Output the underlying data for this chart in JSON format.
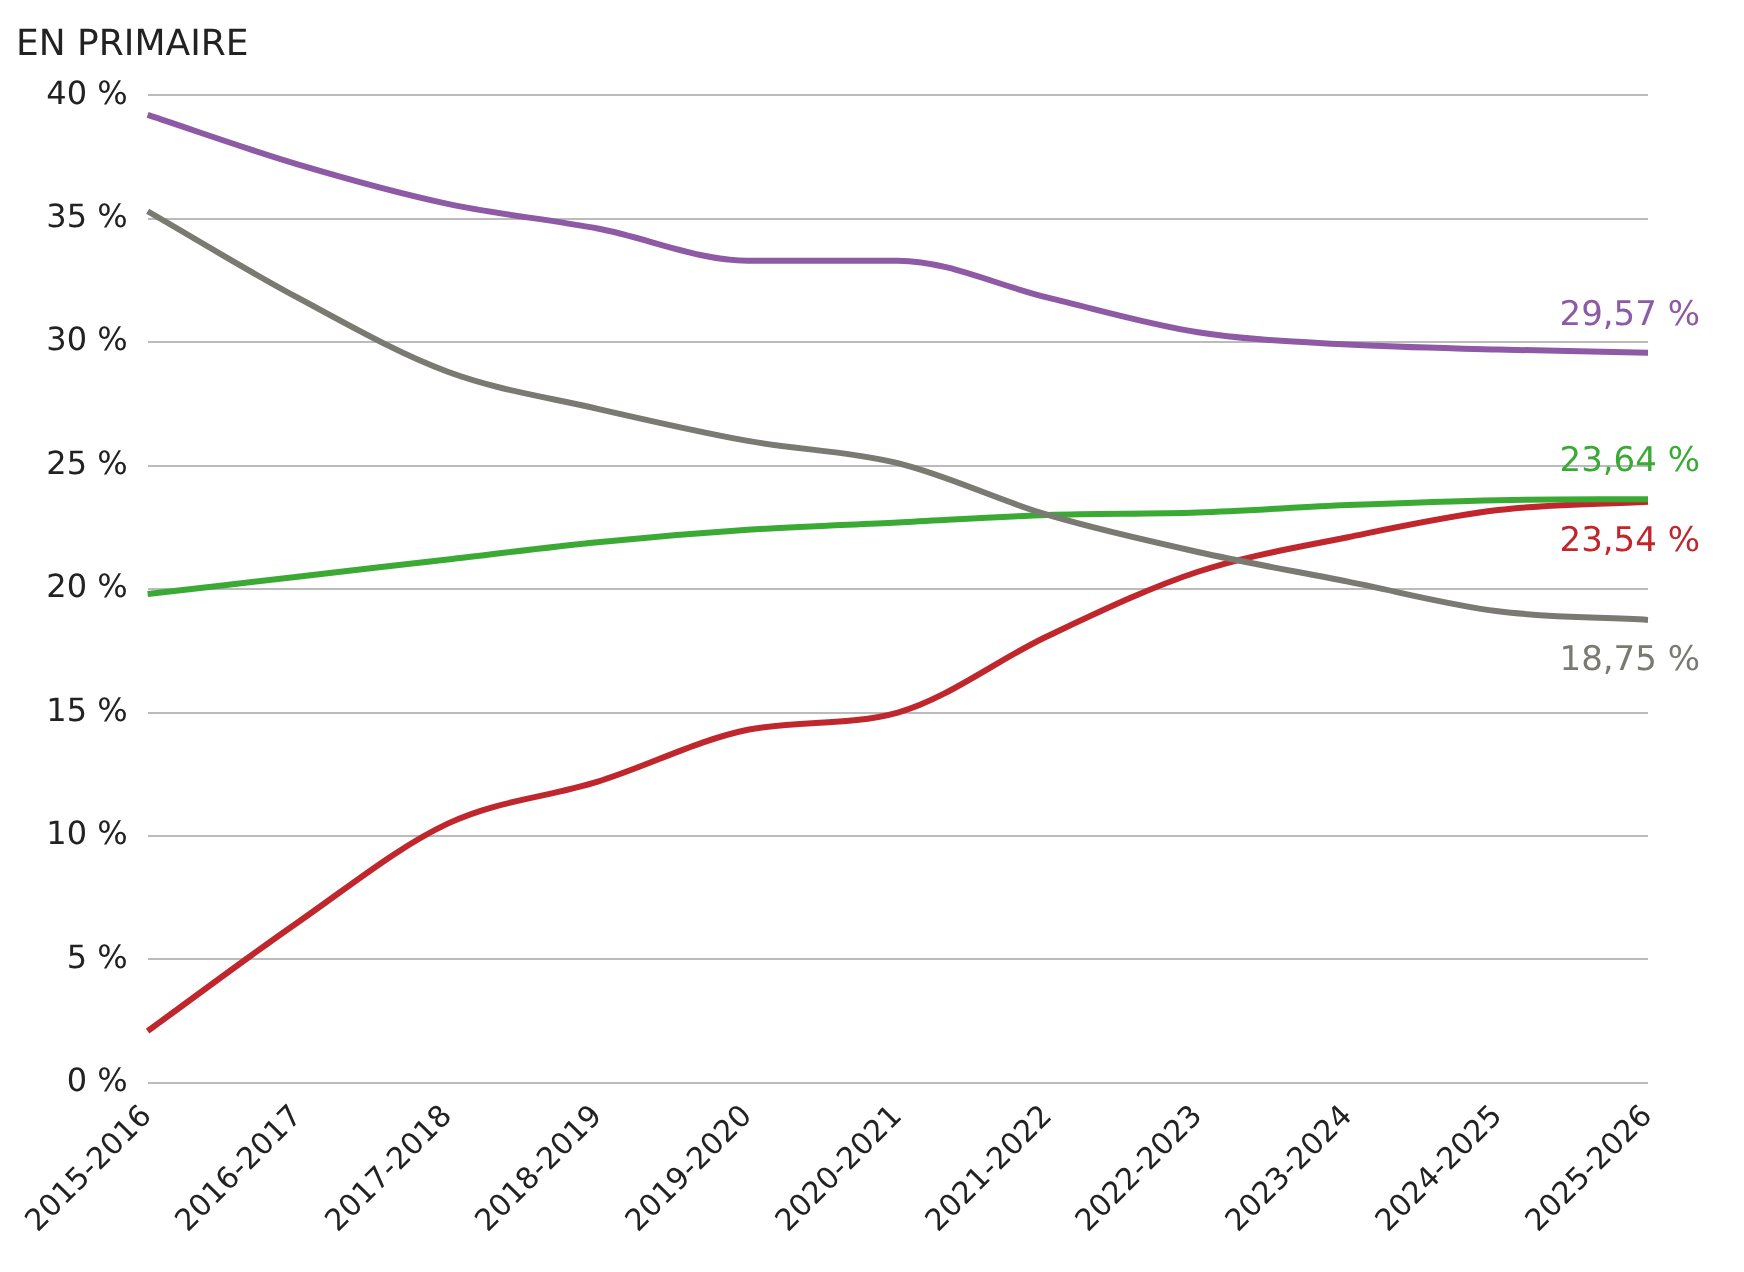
{
  "chart_data": {
    "type": "line",
    "title": "EN PRIMAIRE",
    "categories": [
      "2015-2016",
      "2016-2017",
      "2017-2018",
      "2018-2019",
      "2019-2020",
      "2020-2021",
      "2021-2022",
      "2022-2023",
      "2023-2024",
      "2024-2025",
      "2025-2026"
    ],
    "series": [
      {
        "color": "#8e5aa5",
        "values": [
          39.2,
          37.2,
          35.6,
          34.6,
          33.3,
          33.3,
          31.8,
          30.4,
          29.9,
          29.7,
          29.57
        ],
        "value_labels": [
          null,
          null,
          null,
          null,
          null,
          null,
          null,
          null,
          null,
          null,
          "29,57 %"
        ]
      },
      {
        "color": "#7a7a72",
        "values": [
          35.3,
          31.8,
          28.8,
          27.3,
          26.0,
          25.1,
          23.0,
          21.5,
          20.3,
          19.1,
          18.75
        ],
        "value_labels": [
          null,
          null,
          null,
          null,
          null,
          null,
          null,
          null,
          null,
          null,
          "18,75 %"
        ]
      },
      {
        "color": "#3aaa35",
        "values": [
          19.8,
          20.5,
          21.2,
          21.9,
          22.4,
          22.7,
          23.0,
          23.1,
          23.4,
          23.6,
          23.64
        ],
        "value_labels": [
          null,
          null,
          null,
          null,
          null,
          null,
          null,
          null,
          null,
          null,
          "23,64 %"
        ]
      },
      {
        "color": "#c0272d",
        "values": [
          2.1,
          6.5,
          10.5,
          12.2,
          14.3,
          15.0,
          18.1,
          20.7,
          22.1,
          23.2,
          23.54
        ],
        "value_labels": [
          null,
          null,
          null,
          null,
          null,
          null,
          null,
          null,
          null,
          null,
          "23,54 %"
        ]
      }
    ],
    "ylim": [
      0,
      40
    ],
    "yticks": [
      {
        "value": 0,
        "label": "0 %"
      },
      {
        "value": 5,
        "label": "5 %"
      },
      {
        "value": 10,
        "label": "10 %"
      },
      {
        "value": 15,
        "label": "15 %"
      },
      {
        "value": 20,
        "label": "20 %"
      },
      {
        "value": 25,
        "label": "25 %"
      },
      {
        "value": 30,
        "label": "30 %"
      },
      {
        "value": 35,
        "label": "35 %"
      },
      {
        "value": 40,
        "label": "40 %"
      }
    ],
    "grid": "y",
    "legend": false
  }
}
